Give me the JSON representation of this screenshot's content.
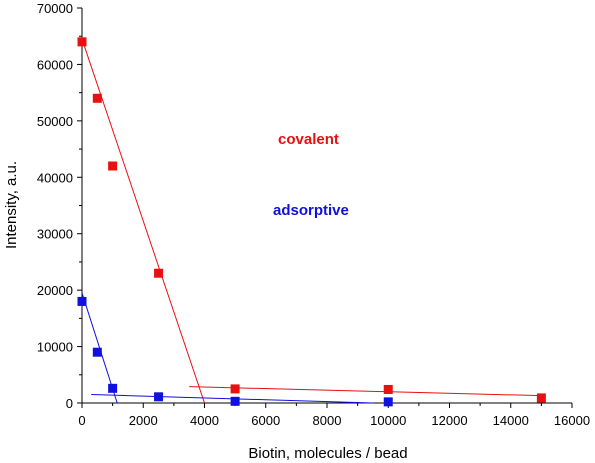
{
  "chart_data": {
    "type": "scatter",
    "title": "",
    "xlabel": "Biotin, molecules / bead",
    "ylabel": "Intensity, a.u.",
    "xlim": [
      0,
      16000
    ],
    "ylim": [
      0,
      70000
    ],
    "xticks": [
      0,
      2000,
      4000,
      6000,
      8000,
      10000,
      12000,
      14000,
      16000
    ],
    "yticks": [
      0,
      10000,
      20000,
      30000,
      40000,
      50000,
      60000,
      70000
    ],
    "grid": false,
    "legend": "none",
    "series": [
      {
        "color": "#e81010",
        "marker": "square",
        "x": [
          0,
          500,
          1000,
          2500,
          5000,
          10000,
          15000
        ],
        "y": [
          64000,
          54000,
          42000,
          23000,
          2500,
          2400,
          900
        ]
      },
      {
        "color": "#1010e0",
        "marker": "square",
        "x": [
          0,
          500,
          1000,
          2500,
          5000,
          10000
        ],
        "y": [
          18000,
          9000,
          2600,
          1100,
          300,
          200
        ]
      }
    ],
    "fit_lines": [
      {
        "color": "#e81010",
        "points": [
          [
            0,
            64500
          ],
          [
            4000,
            0
          ]
        ]
      },
      {
        "color": "#e81010",
        "points": [
          [
            3500,
            2900
          ],
          [
            15000,
            1300
          ]
        ]
      },
      {
        "color": "#1010e0",
        "points": [
          [
            0,
            19500
          ],
          [
            1150,
            0
          ]
        ]
      },
      {
        "color": "#1010e0",
        "points": [
          [
            300,
            1500
          ],
          [
            9500,
            0
          ]
        ]
      }
    ],
    "annotations": [
      {
        "text": "covalent",
        "color": "#e81010"
      },
      {
        "text": "adsorptive",
        "color": "#1010e0"
      }
    ]
  }
}
